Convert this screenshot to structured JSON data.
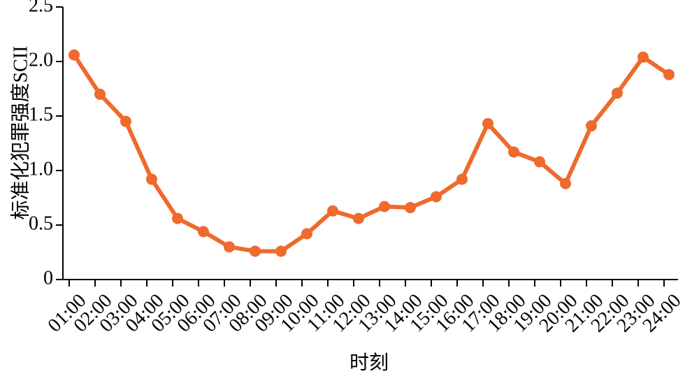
{
  "chart_data": {
    "type": "line",
    "x_label": "时刻",
    "y_label": "标准化犯罪强度SCII",
    "categories": [
      "01:00",
      "02:00",
      "03:00",
      "04:00",
      "05:00",
      "06:00",
      "07:00",
      "08:00",
      "09:00",
      "10:00",
      "11:00",
      "12:00",
      "13:00",
      "14:00",
      "15:00",
      "16:00",
      "17:00",
      "18:00",
      "19:00",
      "20:00",
      "21:00",
      "22:00",
      "23:00",
      "24:00"
    ],
    "values": [
      2.06,
      1.7,
      1.45,
      0.92,
      0.56,
      0.44,
      0.3,
      0.26,
      0.26,
      0.42,
      0.63,
      0.56,
      0.67,
      0.66,
      0.76,
      0.92,
      1.43,
      1.17,
      1.08,
      0.88,
      1.41,
      1.71,
      2.04,
      1.88
    ],
    "color": "#ee6a2d",
    "ylim": [
      0,
      2.5
    ],
    "yticks": [
      0,
      0.5,
      {
        "value": 1,
        "label": "1.0"
      },
      1.5,
      {
        "value": 2,
        "label": "2.0"
      },
      2.5
    ],
    "grid": false
  }
}
